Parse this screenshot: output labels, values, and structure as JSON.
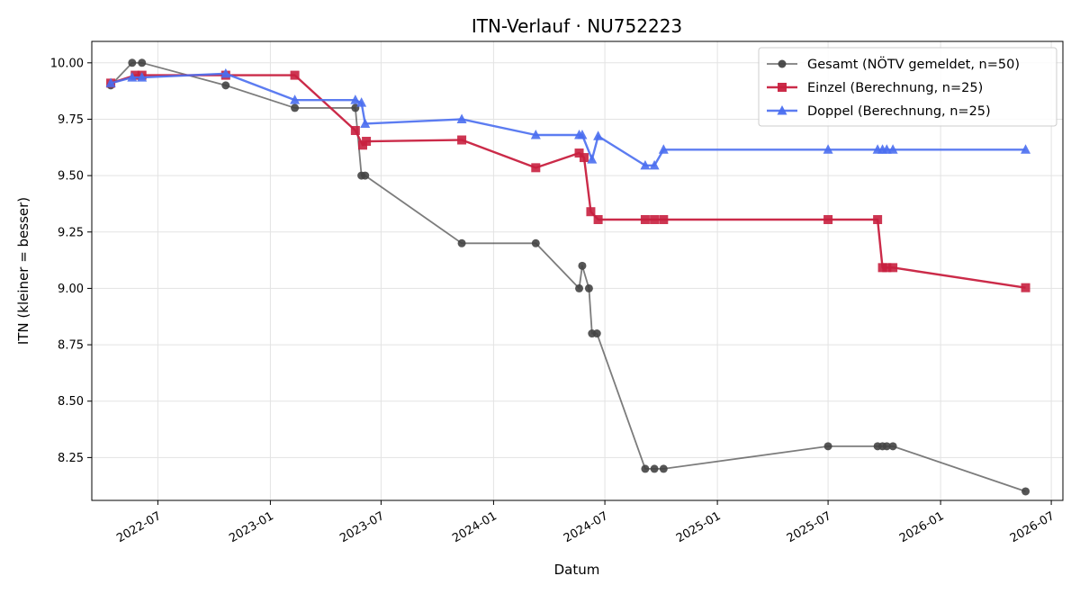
{
  "chart_data": {
    "type": "line",
    "title": "ITN-Verlauf · NU752223",
    "xlabel": "Datum",
    "ylabel": "ITN  (kleiner = besser)",
    "xlim": [
      "2022-03-15",
      "2026-07-20"
    ],
    "ylim": [
      8.06,
      10.095
    ],
    "x_ticks": [
      "2022-07-01",
      "2023-01-01",
      "2023-07-01",
      "2024-01-01",
      "2024-07-01",
      "2025-01-01",
      "2025-07-01",
      "2026-01-01",
      "2026-07-01"
    ],
    "x_tick_labels": [
      "2022-07",
      "2023-01",
      "2023-07",
      "2024-01",
      "2024-07",
      "2025-01",
      "2025-07",
      "2026-01",
      "2026-07"
    ],
    "y_ticks": [
      8.25,
      8.5,
      8.75,
      9.0,
      9.25,
      9.5,
      9.75,
      10.0
    ],
    "y_tick_labels": [
      "8.25",
      "8.50",
      "8.75",
      "9.00",
      "9.25",
      "9.50",
      "9.75",
      "10.00"
    ],
    "grid": true,
    "legend_position": "top-right",
    "series": [
      {
        "name": "Gesamt (NÖTV gemeldet, n=50)",
        "color": "#444444",
        "marker": "circle",
        "points": [
          [
            "2022-04-15",
            9.9
          ],
          [
            "2022-05-20",
            10.0
          ],
          [
            "2022-06-05",
            10.0
          ],
          [
            "2022-10-20",
            9.9
          ],
          [
            "2023-02-10",
            9.8
          ],
          [
            "2023-05-20",
            9.8
          ],
          [
            "2023-05-30",
            9.5
          ],
          [
            "2023-06-05",
            9.5
          ],
          [
            "2023-11-10",
            9.2
          ],
          [
            "2024-03-10",
            9.2
          ],
          [
            "2024-05-20",
            9.0
          ],
          [
            "2024-05-25",
            9.1
          ],
          [
            "2024-06-05",
            9.0
          ],
          [
            "2024-06-10",
            8.8
          ],
          [
            "2024-06-18",
            8.8
          ],
          [
            "2024-09-05",
            8.2
          ],
          [
            "2024-09-20",
            8.2
          ],
          [
            "2024-10-05",
            8.2
          ],
          [
            "2025-07-01",
            8.3
          ],
          [
            "2025-09-20",
            8.3
          ],
          [
            "2025-09-28",
            8.3
          ],
          [
            "2025-10-05",
            8.3
          ],
          [
            "2025-10-15",
            8.3
          ],
          [
            "2026-05-20",
            8.1
          ]
        ]
      },
      {
        "name": "Einzel (Berechnung, n=25)",
        "color": "#c8203f",
        "marker": "square",
        "points": [
          [
            "2022-04-15",
            9.91
          ],
          [
            "2022-05-25",
            9.945
          ],
          [
            "2022-06-05",
            9.945
          ],
          [
            "2022-10-20",
            9.945
          ],
          [
            "2023-02-10",
            9.945
          ],
          [
            "2023-05-20",
            9.7
          ],
          [
            "2023-06-01",
            9.635
          ],
          [
            "2023-06-07",
            9.652
          ],
          [
            "2023-11-10",
            9.658
          ],
          [
            "2024-03-10",
            9.535
          ],
          [
            "2024-05-20",
            9.6
          ],
          [
            "2024-05-28",
            9.58
          ],
          [
            "2024-06-08",
            9.34
          ],
          [
            "2024-06-20",
            9.305
          ],
          [
            "2024-09-05",
            9.305
          ],
          [
            "2024-09-20",
            9.305
          ],
          [
            "2024-10-05",
            9.305
          ],
          [
            "2025-07-01",
            9.305
          ],
          [
            "2025-09-20",
            9.305
          ],
          [
            "2025-09-28",
            9.092
          ],
          [
            "2025-10-05",
            9.092
          ],
          [
            "2025-10-15",
            9.092
          ],
          [
            "2026-05-20",
            9.003
          ]
        ]
      },
      {
        "name": "Doppel (Berechnung, n=25)",
        "color": "#4a6ef0",
        "marker": "triangle",
        "points": [
          [
            "2022-04-15",
            9.91
          ],
          [
            "2022-05-20",
            9.935
          ],
          [
            "2022-06-05",
            9.935
          ],
          [
            "2022-10-20",
            9.952
          ],
          [
            "2023-02-10",
            9.835
          ],
          [
            "2023-05-20",
            9.835
          ],
          [
            "2023-05-30",
            9.823
          ],
          [
            "2023-06-05",
            9.73
          ],
          [
            "2023-11-10",
            9.75
          ],
          [
            "2024-03-10",
            9.68
          ],
          [
            "2024-05-20",
            9.68
          ],
          [
            "2024-05-25",
            9.68
          ],
          [
            "2024-06-10",
            9.572
          ],
          [
            "2024-06-20",
            9.675
          ],
          [
            "2024-09-05",
            9.545
          ],
          [
            "2024-09-20",
            9.545
          ],
          [
            "2024-10-05",
            9.615
          ],
          [
            "2025-07-01",
            9.615
          ],
          [
            "2025-09-20",
            9.615
          ],
          [
            "2025-09-28",
            9.615
          ],
          [
            "2025-10-05",
            9.615
          ],
          [
            "2025-10-15",
            9.615
          ],
          [
            "2026-05-20",
            9.615
          ]
        ]
      }
    ]
  }
}
